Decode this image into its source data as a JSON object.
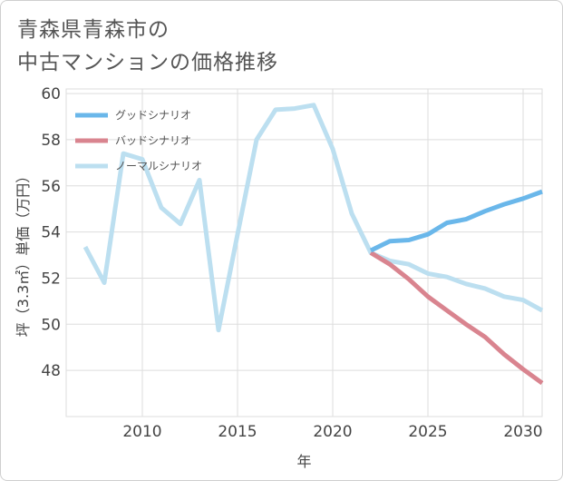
{
  "title_lines": [
    "青森県青森市の",
    "中古マンションの価格推移"
  ],
  "colors": {
    "good": "#6ab7ea",
    "bad": "#d9848f",
    "normal": "#bcdff0",
    "grid": "#dddddd",
    "axis": "#444444"
  },
  "chart_data": {
    "type": "line",
    "title": "青森県青森市の中古マンションの価格推移",
    "xlabel": "年",
    "ylabel": "坪（3.3㎡）単価（万円）",
    "xlim": [
      2006,
      2031
    ],
    "ylim": [
      46,
      60.2
    ],
    "xticks": [
      2010,
      2015,
      2020,
      2025,
      2030
    ],
    "yticks": [
      48,
      50,
      52,
      54,
      56,
      58,
      60
    ],
    "legend_position": "top-left",
    "series": [
      {
        "key": "good",
        "name": "グッドシナリオ",
        "x": [
          2022,
          2023,
          2024,
          2025,
          2026,
          2027,
          2028,
          2029,
          2030,
          2031
        ],
        "y": [
          53.2,
          53.6,
          53.65,
          53.9,
          54.4,
          54.55,
          54.9,
          55.2,
          55.45,
          55.75
        ]
      },
      {
        "key": "bad",
        "name": "バッドシナリオ",
        "x": [
          2022,
          2023,
          2024,
          2025,
          2026,
          2027,
          2028,
          2029,
          2030,
          2031
        ],
        "y": [
          53.1,
          52.6,
          51.95,
          51.2,
          50.6,
          50.0,
          49.45,
          48.7,
          48.05,
          47.45
        ]
      },
      {
        "key": "normal",
        "name": "ノーマルシナリオ",
        "x": [
          2007,
          2008,
          2009,
          2010,
          2011,
          2012,
          2013,
          2014,
          2015,
          2016,
          2017,
          2018,
          2019,
          2020,
          2021,
          2022,
          2023,
          2024,
          2025,
          2026,
          2027,
          2028,
          2029,
          2030,
          2031
        ],
        "y": [
          53.35,
          51.8,
          57.4,
          57.15,
          55.05,
          54.35,
          56.25,
          49.75,
          53.9,
          58.0,
          59.3,
          59.35,
          59.5,
          57.6,
          54.8,
          53.1,
          52.75,
          52.6,
          52.2,
          52.05,
          51.75,
          51.55,
          51.2,
          51.05,
          50.6
        ]
      }
    ]
  }
}
